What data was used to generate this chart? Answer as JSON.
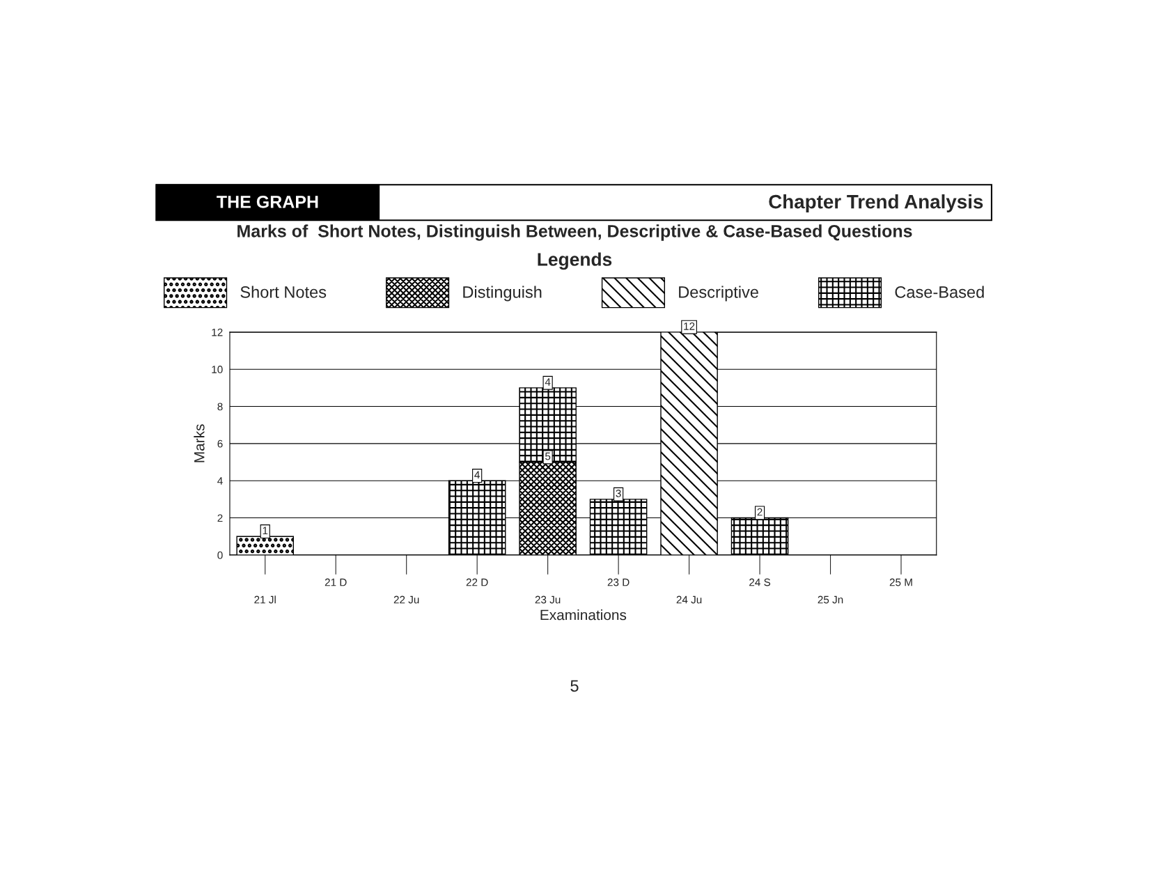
{
  "chart_data": {
    "type": "bar",
    "stacked": true,
    "title": "Marks of  Short Notes, Distinguish Between, Descriptive & Case-Based Questions",
    "legend_title": "Legends",
    "xlabel": "Examinations",
    "ylabel": "Marks",
    "categories": [
      "21 Jl",
      "21 D",
      "22 Ju",
      "22 D",
      "23 Ju",
      "23 D",
      "24 Ju",
      "24 S",
      "25 Jn",
      "25 M"
    ],
    "series": [
      {
        "name": "Short Notes",
        "color": "#000000",
        "values": [
          1,
          null,
          null,
          null,
          null,
          null,
          null,
          null,
          null,
          null
        ]
      },
      {
        "name": "Distinguish",
        "color": "#000000",
        "values": [
          null,
          null,
          null,
          null,
          5,
          null,
          null,
          null,
          null,
          null
        ]
      },
      {
        "name": "Descriptive",
        "color": "#000000",
        "values": [
          null,
          null,
          null,
          null,
          null,
          null,
          12,
          null,
          null,
          null
        ]
      },
      {
        "name": "Case-Based",
        "color": "#000000",
        "values": [
          null,
          null,
          null,
          4,
          4,
          3,
          null,
          2,
          null,
          null
        ]
      }
    ],
    "ylim": [
      0,
      12
    ],
    "yticks": [
      0,
      2,
      4,
      6,
      8,
      10,
      12
    ],
    "grid": "y",
    "legend": "top",
    "data_labels": true,
    "annotations": [
      "THE GRAPH",
      "Chapter Trend Analysis",
      "5"
    ]
  }
}
